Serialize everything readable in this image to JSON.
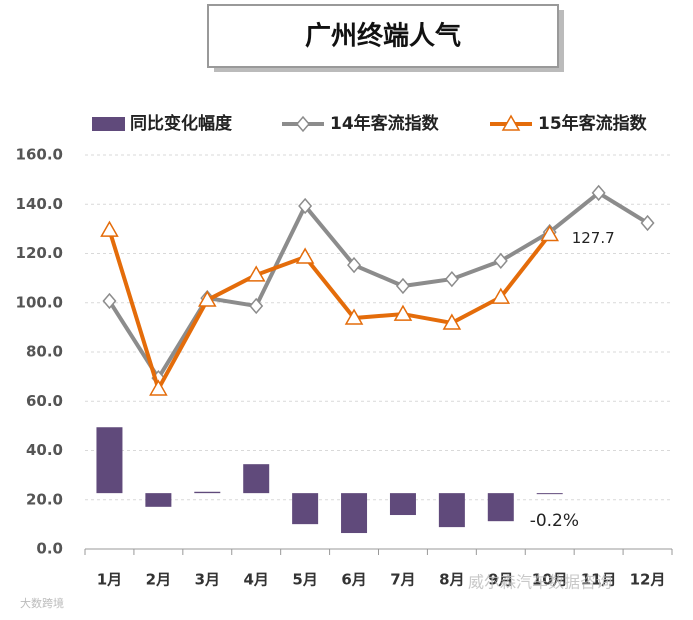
{
  "chart_data": {
    "type": "line",
    "title": "广州终端人气",
    "categories": [
      "1月",
      "2月",
      "3月",
      "4月",
      "5月",
      "6月",
      "7月",
      "8月",
      "9月",
      "10月",
      "11月",
      "12月"
    ],
    "series": [
      {
        "name": "同比变化幅度",
        "type": "bar",
        "axis": "y2",
        "color": "#604a7b",
        "values": [
          28.9,
          -6.0,
          0.6,
          12.7,
          -13.6,
          -17.5,
          -9.6,
          -14.9,
          -12.3,
          -0.2,
          null,
          null
        ],
        "value_labels": [
          null,
          null,
          null,
          null,
          null,
          null,
          null,
          null,
          null,
          "-0.2%",
          null,
          null
        ]
      },
      {
        "name": "14年客流指数",
        "type": "line",
        "color": "#8c8c8c",
        "marker": "diamond",
        "values": [
          100.7,
          69.4,
          101.9,
          98.7,
          139.3,
          115.3,
          106.8,
          109.6,
          117.0,
          128.7,
          144.6,
          132.4
        ]
      },
      {
        "name": "15年客流指数",
        "type": "line",
        "color": "#e46c0a",
        "marker": "triangle",
        "values": [
          129.5,
          65.0,
          101.1,
          111.3,
          118.6,
          93.8,
          95.4,
          91.8,
          102.3,
          127.7,
          null,
          null
        ]
      }
    ],
    "ylim": [
      0,
      160
    ],
    "yticks": [
      {
        "value": 0,
        "label": "0.0"
      },
      {
        "value": 20,
        "label": "20.0"
      },
      {
        "value": 40,
        "label": "40.0"
      },
      {
        "value": 60,
        "label": "60.0"
      },
      {
        "value": 80,
        "label": "80.0"
      },
      {
        "value": 100,
        "label": "100.0"
      },
      {
        "value": 120,
        "label": "120.0"
      },
      {
        "value": 140,
        "label": "140.0"
      },
      {
        "value": 160,
        "label": "160.0"
      }
    ],
    "y2lim": [
      -24.5,
      148.3
    ],
    "grid": true,
    "legend": "top",
    "watermarks": [
      "大数跨境",
      "威尔森汽车数据咨询"
    ]
  }
}
